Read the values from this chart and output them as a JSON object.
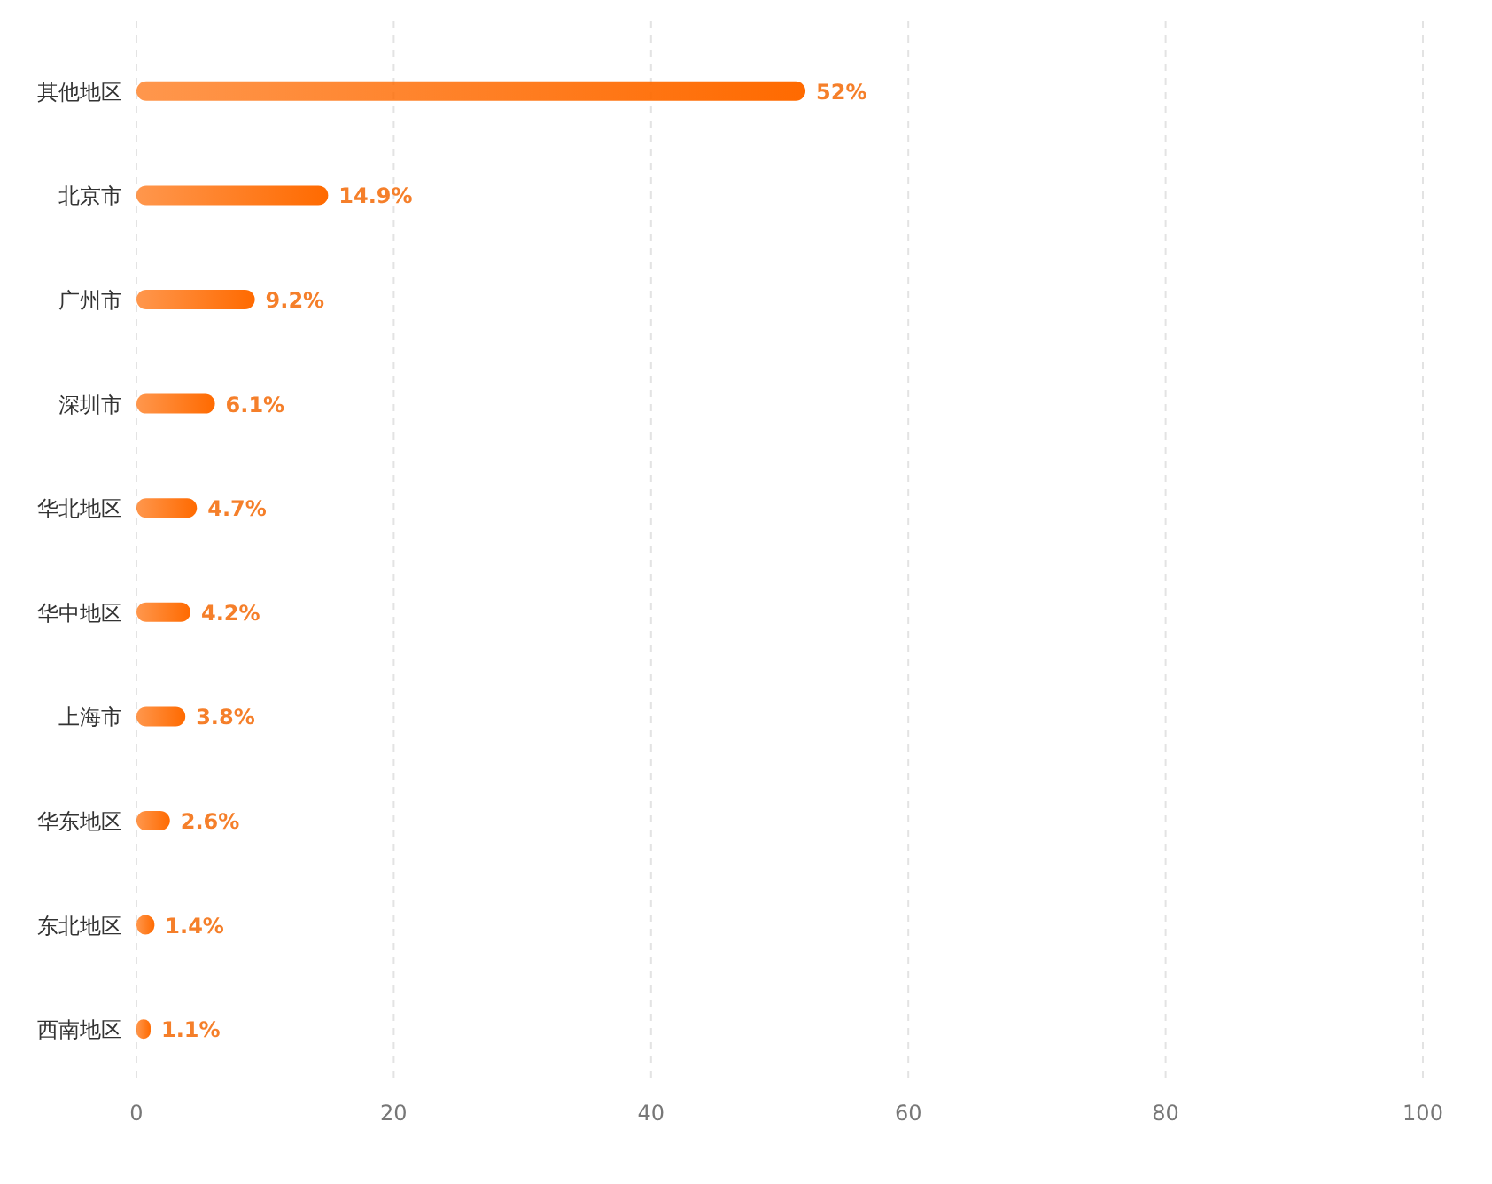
{
  "chart_data": {
    "type": "bar",
    "orientation": "horizontal",
    "categories": [
      "其他地区",
      "北京市",
      "广州市",
      "深圳市",
      "华北地区",
      "华中地区",
      "上海市",
      "华东地区",
      "东北地区",
      "西南地区"
    ],
    "values": [
      52,
      14.9,
      9.2,
      6.1,
      4.7,
      4.2,
      3.8,
      2.6,
      1.4,
      1.1
    ],
    "value_labels": [
      "52%",
      "14.9%",
      "9.2%",
      "6.1%",
      "4.7%",
      "4.2%",
      "3.8%",
      "2.6%",
      "1.4%",
      "1.1%"
    ],
    "color": "#ff6a00",
    "xlim": [
      0,
      100
    ],
    "xticks": [
      0,
      20,
      40,
      60,
      80,
      100
    ],
    "grid": "x"
  }
}
